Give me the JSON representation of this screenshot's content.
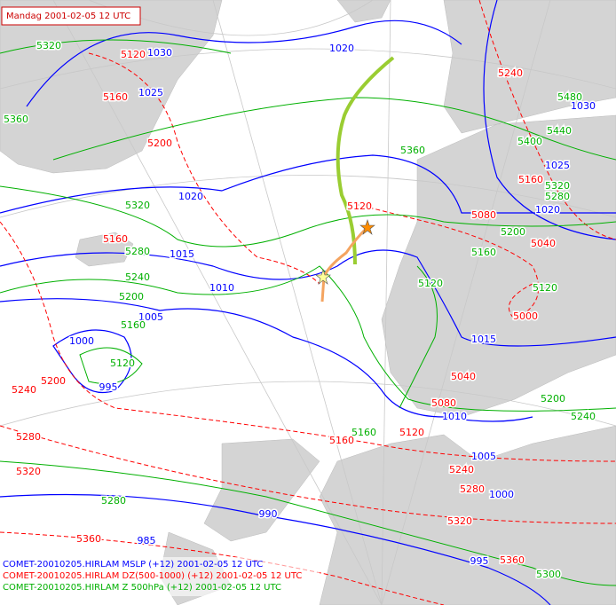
{
  "header": {
    "title": "Mandag 2001-02-05 12 UTC"
  },
  "legend": [
    {
      "text": "COMET-20010205.HIRLAM MSLP (+12) 2001-02-05 12 UTC",
      "color": "#0000ff"
    },
    {
      "text": "COMET-20010205.HIRLAM DZ(500-1000) (+12) 2001-02-05 12 UTC",
      "color": "#ff0000"
    },
    {
      "text": "COMET-20010205.HIRLAM Z 500hPa (+12) 2001-02-05 12 UTC",
      "color": "#00b000"
    }
  ],
  "contour_labels": [
    {
      "color": "#0000ff",
      "values": [
        1030,
        1025,
        1020,
        1020,
        1015,
        1010,
        1005,
        1000,
        995,
        1025,
        1020,
        1015,
        1010,
        1005,
        1000,
        990,
        985,
        995,
        1030
      ]
    },
    {
      "color": "#ff0000",
      "values": [
        5120,
        5160,
        5200,
        5240,
        5160,
        5080,
        5040,
        5000,
        5040,
        5080,
        5120,
        5160,
        5240,
        5280,
        5320,
        5360,
        5360,
        5320,
        5280,
        5240,
        5200,
        5160,
        5120
      ]
    },
    {
      "color": "#00b000",
      "values": [
        5320,
        5360,
        5320,
        5280,
        5240,
        5200,
        5160,
        5120,
        5360,
        5400,
        5440,
        5480,
        5320,
        5280,
        5200,
        5160,
        5120,
        5120,
        5160,
        5200,
        5240,
        5280,
        5300
      ]
    }
  ]
}
